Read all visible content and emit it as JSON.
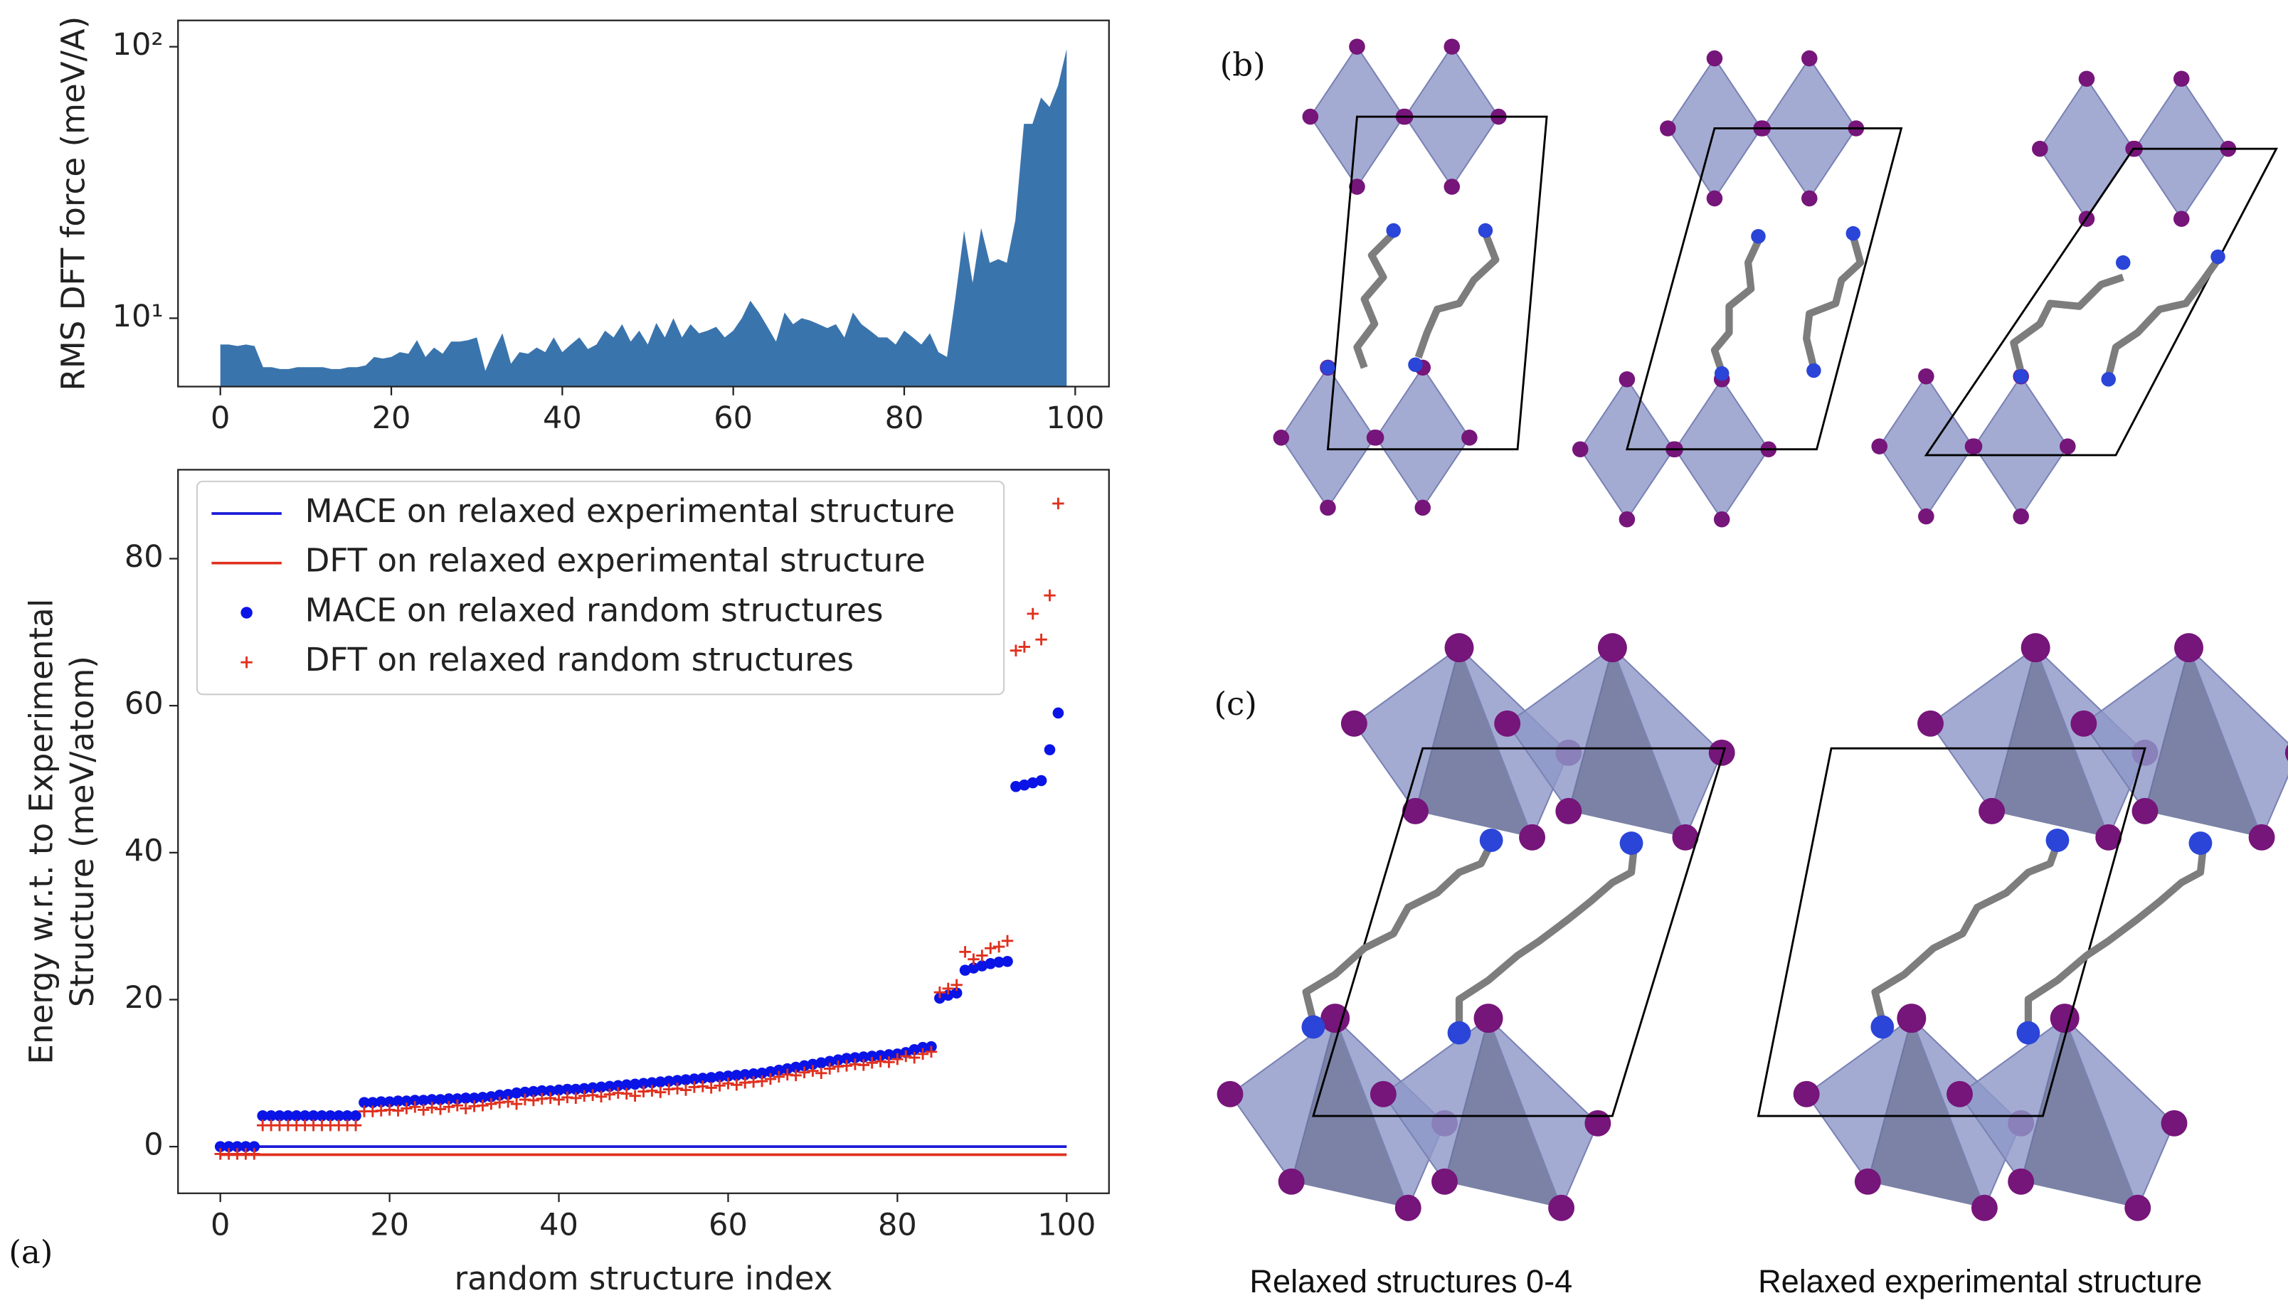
{
  "chart_data": [
    {
      "type": "area",
      "ylabel": "RMS DFT force (meV/A)",
      "color": "#3a74ad",
      "yscale": "log",
      "xlim": [
        -4.95,
        103.95
      ],
      "ylim": [
        5.6,
        125
      ],
      "xticks": [
        0,
        20,
        40,
        60,
        80,
        100
      ],
      "yticks": [
        {
          "value": 10,
          "label": "10¹"
        },
        {
          "value": 100,
          "label": "10²"
        }
      ],
      "x": [
        0,
        1,
        2,
        3,
        4,
        5,
        6,
        7,
        8,
        9,
        10,
        11,
        12,
        13,
        14,
        15,
        16,
        17,
        18,
        19,
        20,
        21,
        22,
        23,
        24,
        25,
        26,
        27,
        28,
        29,
        30,
        31,
        32,
        33,
        34,
        35,
        36,
        37,
        38,
        39,
        40,
        41,
        42,
        43,
        44,
        45,
        46,
        47,
        48,
        49,
        50,
        51,
        52,
        53,
        54,
        55,
        56,
        57,
        58,
        59,
        60,
        61,
        62,
        63,
        64,
        65,
        66,
        67,
        68,
        69,
        70,
        71,
        72,
        73,
        74,
        75,
        76,
        77,
        78,
        79,
        80,
        81,
        82,
        83,
        84,
        85,
        86,
        87,
        88,
        89,
        90,
        91,
        92,
        93,
        94,
        95,
        96,
        97,
        98,
        99
      ],
      "values": [
        8.0,
        8.0,
        7.9,
        8.0,
        7.9,
        6.6,
        6.6,
        6.5,
        6.5,
        6.6,
        6.6,
        6.6,
        6.6,
        6.5,
        6.5,
        6.6,
        6.6,
        6.7,
        7.2,
        7.1,
        7.2,
        7.5,
        7.4,
        8.3,
        7.2,
        7.8,
        7.4,
        8.2,
        8.2,
        8.3,
        8.5,
        6.4,
        7.6,
        8.8,
        6.8,
        7.5,
        7.4,
        7.8,
        7.5,
        8.5,
        7.5,
        8.0,
        8.5,
        7.7,
        8.0,
        9.0,
        8.5,
        9.5,
        8.2,
        9.0,
        8.0,
        9.6,
        8.5,
        10.0,
        8.5,
        9.5,
        8.8,
        9.0,
        9.3,
        8.5,
        9.0,
        10.0,
        11.6,
        10.5,
        9.3,
        8.2,
        10.5,
        9.5,
        10.0,
        9.8,
        9.5,
        9.2,
        9.5,
        8.5,
        10.5,
        9.5,
        9.0,
        8.5,
        8.5,
        8.0,
        9.0,
        8.5,
        8.0,
        8.8,
        7.5,
        7.2,
        12.0,
        21,
        13.5,
        21.5,
        16,
        16.5,
        16,
        23,
        52,
        52,
        65,
        60,
        72,
        98
      ]
    },
    {
      "type": "scatter",
      "xlabel": "random structure index",
      "ylabel": [
        "Energy w.r.t. to Experimental",
        "Structure (meV/atom)"
      ],
      "xlim": [
        -5,
        105
      ],
      "ylim": [
        -6.35,
        92.1
      ],
      "xticks": [
        0,
        20,
        40,
        60,
        80,
        100
      ],
      "yticks": [
        0,
        20,
        40,
        60,
        80
      ],
      "legend": "upper left",
      "x": [
        0,
        1,
        2,
        3,
        4,
        5,
        6,
        7,
        8,
        9,
        10,
        11,
        12,
        13,
        14,
        15,
        16,
        17,
        18,
        19,
        20,
        21,
        22,
        23,
        24,
        25,
        26,
        27,
        28,
        29,
        30,
        31,
        32,
        33,
        34,
        35,
        36,
        37,
        38,
        39,
        40,
        41,
        42,
        43,
        44,
        45,
        46,
        47,
        48,
        49,
        50,
        51,
        52,
        53,
        54,
        55,
        56,
        57,
        58,
        59,
        60,
        61,
        62,
        63,
        64,
        65,
        66,
        67,
        68,
        69,
        70,
        71,
        72,
        73,
        74,
        75,
        76,
        77,
        78,
        79,
        80,
        81,
        82,
        83,
        84,
        85,
        86,
        87,
        88,
        89,
        90,
        91,
        92,
        93,
        94,
        95,
        96,
        97,
        98,
        99
      ],
      "series": [
        {
          "name": "MACE on relaxed experimental structure",
          "type": "line",
          "color": "#1a1ad6",
          "x": [
            0,
            100
          ],
          "values": [
            0,
            0
          ]
        },
        {
          "name": "DFT on relaxed experimental structure",
          "type": "line",
          "color": "#e0301e",
          "x": [
            0,
            100
          ],
          "values": [
            -1.1,
            -1.1
          ]
        },
        {
          "name": "MACE on relaxed random structures",
          "type": "scatter",
          "marker": "o",
          "color": "#0a14e6",
          "values": [
            0,
            0,
            0,
            0,
            0,
            4.2,
            4.2,
            4.2,
            4.2,
            4.2,
            4.2,
            4.2,
            4.2,
            4.2,
            4.2,
            4.2,
            4.2,
            6.0,
            6.0,
            6.1,
            6.1,
            6.2,
            6.2,
            6.3,
            6.3,
            6.4,
            6.4,
            6.5,
            6.5,
            6.6,
            6.6,
            6.7,
            6.8,
            7.0,
            7.1,
            7.3,
            7.4,
            7.5,
            7.6,
            7.6,
            7.7,
            7.8,
            7.8,
            7.9,
            8.0,
            8.1,
            8.2,
            8.3,
            8.4,
            8.5,
            8.6,
            8.7,
            8.8,
            8.9,
            9.0,
            9.1,
            9.2,
            9.3,
            9.4,
            9.5,
            9.6,
            9.7,
            9.8,
            9.9,
            10.0,
            10.2,
            10.4,
            10.6,
            10.8,
            11.0,
            11.2,
            11.4,
            11.6,
            11.8,
            12.0,
            12.1,
            12.2,
            12.3,
            12.4,
            12.5,
            12.6,
            12.8,
            13.2,
            13.5,
            13.6,
            20.2,
            20.6,
            20.9,
            24.0,
            24.3,
            24.6,
            24.9,
            25.1,
            25.2,
            49,
            49.2,
            49.5,
            49.8,
            54,
            59
          ]
        },
        {
          "name": "DFT on relaxed random structures",
          "type": "scatter",
          "marker": "+",
          "color": "#e0301e",
          "values": [
            -1.0,
            -1.0,
            -1.0,
            -1.0,
            -1.0,
            2.9,
            2.9,
            2.9,
            2.9,
            2.9,
            2.9,
            2.9,
            2.9,
            2.9,
            2.9,
            2.9,
            2.9,
            4.8,
            4.8,
            4.9,
            5.0,
            4.9,
            5.2,
            5.4,
            5.0,
            5.3,
            5.1,
            5.4,
            5.6,
            5.2,
            5.5,
            5.6,
            5.8,
            6.0,
            6.1,
            5.8,
            6.4,
            6.3,
            6.5,
            6.6,
            6.4,
            6.7,
            6.6,
            6.9,
            7.0,
            6.8,
            7.1,
            7.3,
            7.2,
            6.9,
            7.5,
            7.6,
            7.4,
            7.8,
            7.9,
            7.7,
            8.1,
            8.2,
            8.0,
            8.3,
            8.6,
            8.4,
            8.7,
            8.8,
            8.9,
            9.2,
            9.5,
            9.8,
            9.7,
            10.1,
            10.3,
            10.0,
            10.6,
            10.9,
            11.0,
            11.2,
            11.1,
            11.4,
            11.6,
            11.5,
            11.9,
            12.3,
            12.1,
            12.6,
            12.9,
            21.0,
            21.5,
            22.0,
            26.5,
            25.5,
            26.0,
            27.0,
            27.2,
            28.0,
            67.5,
            68,
            72.5,
            69,
            75,
            87.5
          ]
        }
      ]
    }
  ],
  "panel_labels": [
    "(a)",
    "(b)",
    "(c)"
  ],
  "captions": [
    "Relaxed structures 0-4",
    "Relaxed experimental structure"
  ]
}
